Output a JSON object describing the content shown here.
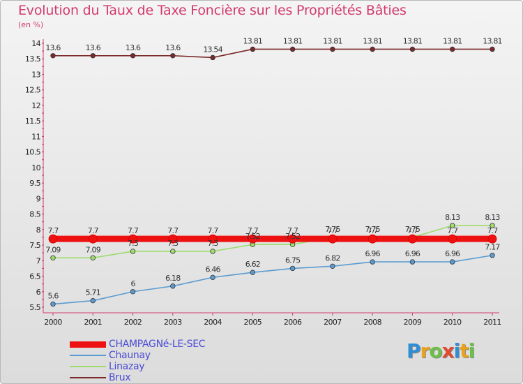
{
  "title": "Evolution du Taux de Taxe Foncière sur les Propriétés Bâties",
  "unit": "(en %)",
  "logo": {
    "letters": [
      "P",
      "r",
      "o",
      "x",
      "i",
      "t",
      "i"
    ],
    "colors": [
      "#2e8fd6",
      "#e8a21c",
      "#6cc04a",
      "#e04a2e",
      "#2e8fd6",
      "#e8a21c",
      "#6cc04a"
    ]
  },
  "chart_data": {
    "type": "line",
    "title": "Evolution du Taux de Taxe Foncière sur les Propriétés Bâties",
    "ylabel": "(en %)",
    "xlabel": "",
    "x": [
      "2000",
      "2001",
      "2002",
      "2003",
      "2004",
      "2005",
      "2006",
      "2007",
      "2008",
      "2009",
      "2010",
      "2011"
    ],
    "ylim": [
      5.5,
      14
    ],
    "yticks": [
      "5.5",
      "6",
      "6.5",
      "7",
      "7.5",
      "8",
      "8.5",
      "9",
      "9.5",
      "10",
      "10.5",
      "11",
      "11.5",
      "12",
      "12.5",
      "13",
      "13.5",
      "14"
    ],
    "series": [
      {
        "name": "CHAMPAGNé-LE-SEC",
        "color": "#ee1111",
        "values": [
          7.7,
          7.7,
          7.7,
          7.7,
          7.7,
          7.7,
          7.7,
          7.7,
          7.7,
          7.7,
          7.7,
          7.7
        ],
        "labels": [
          "7.7",
          "7.7",
          "7.7",
          "7.7",
          "7.7",
          "7.7",
          "7.7",
          "7.7",
          "7.7",
          "7.7",
          "7.7",
          "7.7"
        ]
      },
      {
        "name": "Chaunay",
        "color": "#5b9bd0",
        "values": [
          5.6,
          5.71,
          6,
          6.18,
          6.46,
          6.62,
          6.75,
          6.82,
          6.96,
          6.96,
          6.96,
          7.17
        ],
        "labels": [
          "5.6",
          "5.71",
          "6",
          "6.18",
          "6.46",
          "6.62",
          "6.75",
          "6.82",
          "6.96",
          "6.96",
          "6.96",
          "7.17"
        ]
      },
      {
        "name": "Linazay",
        "color": "#9edc6e",
        "values": [
          7.09,
          7.09,
          7.3,
          7.3,
          7.3,
          7.52,
          7.52,
          7.75,
          7.75,
          7.75,
          8.13,
          8.13
        ],
        "labels": [
          "7.09",
          "7.09",
          "7.3",
          "7.3",
          "7.3",
          "7.52",
          "7.52",
          "7.75",
          "7.75",
          "7.75",
          "8.13",
          "8.13"
        ]
      },
      {
        "name": "Brux",
        "color": "#7a2a2a",
        "values": [
          13.6,
          13.6,
          13.6,
          13.6,
          13.54,
          13.81,
          13.81,
          13.81,
          13.81,
          13.81,
          13.81,
          13.81
        ],
        "labels": [
          "13.6",
          "13.6",
          "13.6",
          "13.6",
          "13.54",
          "13.81",
          "13.81",
          "13.81",
          "13.81",
          "13.81",
          "13.81",
          "13.81"
        ]
      }
    ]
  }
}
